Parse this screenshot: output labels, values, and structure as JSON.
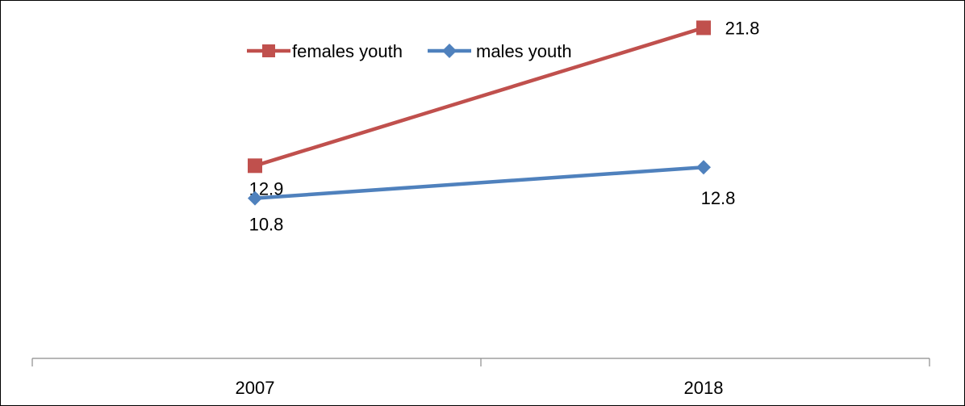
{
  "chart_data": {
    "type": "line",
    "title": "",
    "xlabel": "",
    "ylabel": "",
    "categories": [
      "2007",
      "2018"
    ],
    "ylim": [
      8,
      24
    ],
    "grid": false,
    "legend_position": "top-center",
    "series": [
      {
        "name": "females youth",
        "values": [
          12.9,
          21.8
        ],
        "color": "#C0504D",
        "marker": "square"
      },
      {
        "name": "males youth",
        "values": [
          10.8,
          12.8
        ],
        "color": "#4F81BD",
        "marker": "diamond"
      }
    ]
  }
}
